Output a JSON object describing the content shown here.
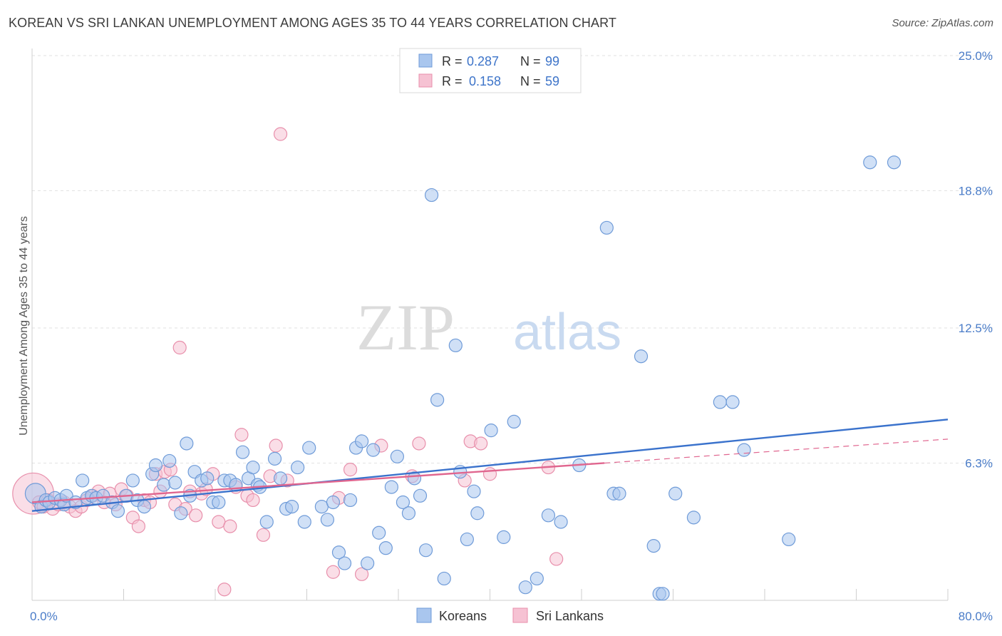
{
  "header": {
    "title": "KOREAN VS SRI LANKAN UNEMPLOYMENT AMONG AGES 35 TO 44 YEARS CORRELATION CHART",
    "source": "Source: ZipAtlas.com"
  },
  "watermark": {
    "zip": "ZIP",
    "atlas": "atlas"
  },
  "legend": {
    "rows": [
      {
        "r_label": "R =",
        "r_value": "0.287",
        "n_label": "N =",
        "n_value": "99",
        "color": "#a9c6ee",
        "stroke": "#6f9bd8"
      },
      {
        "r_label": "R =",
        "r_value": "0.158",
        "n_label": "N =",
        "n_value": "59",
        "color": "#f6c2d3",
        "stroke": "#e88fab"
      }
    ]
  },
  "chart_data": {
    "type": "scatter",
    "title": "KOREAN VS SRI LANKAN UNEMPLOYMENT AMONG AGES 35 TO 44 YEARS CORRELATION CHART",
    "xlabel": "",
    "ylabel": "Unemployment Among Ages 35 to 44 years",
    "xlim": [
      0,
      80
    ],
    "ylim": [
      0,
      25
    ],
    "x_tick_labels": [
      "0.0%",
      "80.0%"
    ],
    "y_ticks": [
      6.3,
      12.5,
      18.8,
      25.0
    ],
    "y_tick_labels": [
      "6.3%",
      "12.5%",
      "18.8%",
      "25.0%"
    ],
    "grid": true,
    "legend_placement": "bottom-center",
    "series": [
      {
        "name": "Koreans",
        "color": "#a9c6ee",
        "stroke": "#6f9bd8",
        "trend": {
          "x": [
            0,
            80
          ],
          "y": [
            4.1,
            8.3
          ],
          "color": "#3a72cc"
        },
        "points": [
          [
            0.3,
            4.9,
            1.6
          ],
          [
            0.8,
            4.3,
            1
          ],
          [
            1.2,
            4.6,
            1
          ],
          [
            1.5,
            4.5,
            1
          ],
          [
            2,
            4.7,
            1
          ],
          [
            2.5,
            4.6,
            1
          ],
          [
            2.8,
            4.4,
            1
          ],
          [
            3,
            4.8,
            1
          ],
          [
            3.8,
            4.5,
            1
          ],
          [
            4.4,
            5.5,
            1
          ],
          [
            4.8,
            4.7,
            1
          ],
          [
            5.2,
            4.8,
            1
          ],
          [
            5.6,
            4.7,
            1
          ],
          [
            6.2,
            4.8,
            1
          ],
          [
            7,
            4.5,
            1
          ],
          [
            7.5,
            4.1,
            1
          ],
          [
            8.2,
            4.8,
            1
          ],
          [
            8.8,
            5.5,
            1
          ],
          [
            9.2,
            4.6,
            1
          ],
          [
            9.8,
            4.3,
            1
          ],
          [
            10.5,
            5.8,
            1
          ],
          [
            10.8,
            6.2,
            1
          ],
          [
            11.5,
            5.3,
            1
          ],
          [
            12,
            6.4,
            1
          ],
          [
            12.5,
            5.4,
            1
          ],
          [
            13,
            4,
            1
          ],
          [
            13.5,
            7.2,
            1
          ],
          [
            13.8,
            4.8,
            1
          ],
          [
            14.2,
            5.9,
            1
          ],
          [
            14.8,
            5.5,
            1
          ],
          [
            15.3,
            5.6,
            1
          ],
          [
            15.8,
            4.5,
            1
          ],
          [
            16.3,
            4.5,
            1
          ],
          [
            16.8,
            5.5,
            1
          ],
          [
            17.3,
            5.5,
            1
          ],
          [
            17.8,
            5.3,
            1
          ],
          [
            18.4,
            6.8,
            1
          ],
          [
            18.9,
            5.6,
            1
          ],
          [
            19.3,
            6.1,
            1
          ],
          [
            19.7,
            5.3,
            1
          ],
          [
            19.9,
            5.2,
            1
          ],
          [
            20.5,
            3.6,
            1
          ],
          [
            21.2,
            6.5,
            1
          ],
          [
            21.7,
            5.6,
            1
          ],
          [
            22.2,
            4.2,
            1
          ],
          [
            22.7,
            4.3,
            1
          ],
          [
            23.2,
            6.1,
            1
          ],
          [
            23.8,
            3.6,
            1
          ],
          [
            24.2,
            7,
            1
          ],
          [
            25.3,
            4.3,
            1
          ],
          [
            25.8,
            3.7,
            1
          ],
          [
            26.3,
            4.5,
            1
          ],
          [
            26.8,
            2.2,
            1
          ],
          [
            27.3,
            1.7,
            1
          ],
          [
            27.8,
            4.6,
            1
          ],
          [
            28.3,
            7,
            1
          ],
          [
            28.8,
            7.3,
            1
          ],
          [
            29.3,
            1.7,
            1
          ],
          [
            29.8,
            6.9,
            1
          ],
          [
            30.3,
            3.1,
            1
          ],
          [
            30.9,
            2.4,
            1
          ],
          [
            31.4,
            5.2,
            1
          ],
          [
            31.9,
            6.6,
            1
          ],
          [
            32.4,
            4.5,
            1
          ],
          [
            32.9,
            4,
            1
          ],
          [
            33.4,
            5.6,
            1
          ],
          [
            33.9,
            4.8,
            1
          ],
          [
            34.4,
            2.3,
            1
          ],
          [
            34.9,
            18.6,
            1
          ],
          [
            35.4,
            9.2,
            1
          ],
          [
            36,
            1,
            1
          ],
          [
            37,
            11.7,
            1
          ],
          [
            37.4,
            5.9,
            1
          ],
          [
            38,
            2.8,
            1
          ],
          [
            38.6,
            5,
            1
          ],
          [
            38.9,
            4,
            1
          ],
          [
            40.1,
            7.8,
            1
          ],
          [
            41.2,
            2.9,
            1
          ],
          [
            42.1,
            8.2,
            1
          ],
          [
            43.1,
            0.6,
            1
          ],
          [
            44.1,
            1,
            1
          ],
          [
            45.1,
            3.9,
            1
          ],
          [
            46.2,
            3.6,
            1
          ],
          [
            47.8,
            6.2,
            1
          ],
          [
            50.2,
            17.1,
            1
          ],
          [
            50.8,
            4.9,
            1
          ],
          [
            51.3,
            4.9,
            1
          ],
          [
            53.2,
            11.2,
            1
          ],
          [
            54.3,
            2.5,
            1
          ],
          [
            54.8,
            0.3,
            1
          ],
          [
            55.1,
            0.3,
            1
          ],
          [
            56.2,
            4.9,
            1
          ],
          [
            57.8,
            3.8,
            1
          ],
          [
            60.1,
            9.1,
            1
          ],
          [
            61.2,
            9.1,
            1
          ],
          [
            62.2,
            6.9,
            1
          ],
          [
            66.1,
            2.8,
            1
          ],
          [
            73.2,
            20.1,
            1
          ],
          [
            75.3,
            20.1,
            1
          ]
        ]
      },
      {
        "name": "Sri Lankans",
        "color": "#f6c2d3",
        "stroke": "#e88fab",
        "trend": {
          "x": [
            0,
            50
          ],
          "y": [
            4.5,
            6.3
          ],
          "color": "#e0668f",
          "dashed_extension": {
            "x": [
              50,
              80
            ],
            "y": [
              6.3,
              7.4
            ]
          }
        },
        "points": [
          [
            0.1,
            4.9,
            3.2
          ],
          [
            0.6,
            4.5,
            1
          ],
          [
            1,
            4.3,
            1
          ],
          [
            1.4,
            4.6,
            1
          ],
          [
            1.8,
            4.2,
            1
          ],
          [
            2.3,
            4.4,
            1
          ],
          [
            2.8,
            4.5,
            1
          ],
          [
            3.3,
            4.3,
            1
          ],
          [
            3.8,
            4.1,
            1
          ],
          [
            4.3,
            4.3,
            1
          ],
          [
            4.8,
            4.6,
            1
          ],
          [
            5.3,
            4.8,
            1
          ],
          [
            5.8,
            5,
            1
          ],
          [
            6.3,
            4.5,
            1
          ],
          [
            6.8,
            4.9,
            1
          ],
          [
            7.3,
            4.4,
            1
          ],
          [
            7.8,
            5.1,
            1
          ],
          [
            8.3,
            4.8,
            1
          ],
          [
            8.8,
            3.8,
            1
          ],
          [
            9.3,
            3.4,
            1
          ],
          [
            9.8,
            4.6,
            1
          ],
          [
            10.3,
            4.5,
            1
          ],
          [
            10.8,
            5.8,
            1
          ],
          [
            11.2,
            5,
            1
          ],
          [
            11.6,
            5.9,
            1
          ],
          [
            12.1,
            6,
            1
          ],
          [
            12.5,
            4.4,
            1
          ],
          [
            12.9,
            11.6,
            1
          ],
          [
            13.4,
            4.2,
            1
          ],
          [
            13.8,
            5,
            1
          ],
          [
            14.3,
            3.9,
            1
          ],
          [
            14.8,
            4.9,
            1
          ],
          [
            15.2,
            5.1,
            1
          ],
          [
            15.8,
            5.8,
            1
          ],
          [
            16.3,
            3.6,
            1
          ],
          [
            16.8,
            0.5,
            1
          ],
          [
            17.3,
            3.4,
            1
          ],
          [
            17.8,
            5.2,
            1
          ],
          [
            18.3,
            7.6,
            1
          ],
          [
            18.8,
            4.8,
            1
          ],
          [
            19.3,
            4.6,
            1
          ],
          [
            20.2,
            3,
            1
          ],
          [
            20.8,
            5.7,
            1
          ],
          [
            21.3,
            7.1,
            1
          ],
          [
            21.7,
            21.4,
            1
          ],
          [
            22.3,
            5.5,
            1
          ],
          [
            26.3,
            1.3,
            1
          ],
          [
            26.8,
            4.7,
            1
          ],
          [
            27.8,
            6,
            1
          ],
          [
            28.8,
            1.2,
            1
          ],
          [
            30.5,
            7.1,
            1
          ],
          [
            33.2,
            5.7,
            1
          ],
          [
            33.8,
            7.2,
            1
          ],
          [
            37.8,
            5.5,
            1
          ],
          [
            38.3,
            7.3,
            1
          ],
          [
            39.2,
            7.2,
            1
          ],
          [
            40,
            5.8,
            1
          ],
          [
            45.1,
            6.1,
            1
          ],
          [
            45.8,
            1.9,
            1
          ]
        ]
      }
    ]
  }
}
